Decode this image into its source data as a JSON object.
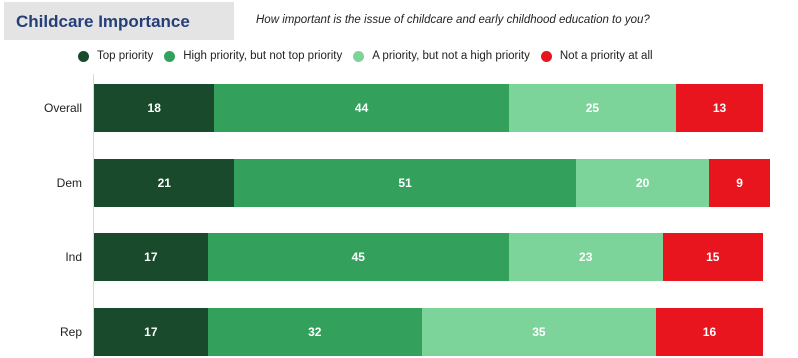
{
  "title": "Childcare Importance",
  "subtitle": "How important is the issue of childcare and early childhood education to you?",
  "chart_data": {
    "type": "bar",
    "orientation": "horizontal",
    "stacked": true,
    "categories": [
      "Overall",
      "Dem",
      "Ind",
      "Rep"
    ],
    "series": [
      {
        "name": "Top priority",
        "color": "#1a4a2c",
        "values": [
          18,
          21,
          17,
          17
        ]
      },
      {
        "name": "High priority, but not top priority",
        "color": "#33a05c",
        "values": [
          44,
          51,
          45,
          32
        ]
      },
      {
        "name": "A priority, but not a high priority",
        "color": "#7dd49b",
        "values": [
          25,
          20,
          23,
          35
        ]
      },
      {
        "name": "Not a priority at all",
        "color": "#e8151f",
        "values": [
          13,
          9,
          15,
          16
        ]
      }
    ],
    "xlim": [
      0,
      100
    ],
    "legend_position": "top",
    "grid": false
  }
}
